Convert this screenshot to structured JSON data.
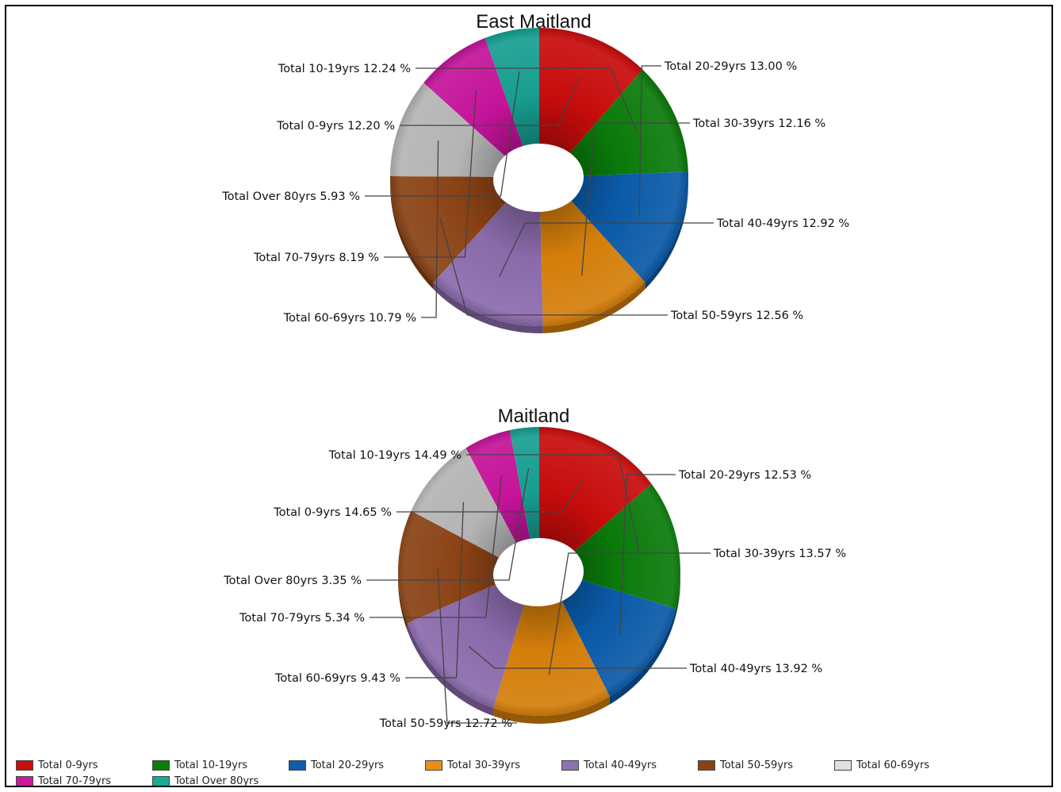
{
  "chart_data": [
    {
      "type": "pie",
      "title": "East Maitland",
      "categories": [
        "Total 0-9yrs",
        "Total 10-19yrs",
        "Total 20-29yrs",
        "Total 30-39yrs",
        "Total 40-49yrs",
        "Total 50-59yrs",
        "Total 60-69yrs",
        "Total 70-79yrs",
        "Total Over 80yrs"
      ],
      "values": [
        12.2,
        12.24,
        13.0,
        12.16,
        12.92,
        12.56,
        10.79,
        8.19,
        5.93
      ],
      "labels": [
        "Total 0-9yrs 12.20 %",
        "Total 10-19yrs 12.24 %",
        "Total 20-29yrs 13.00 %",
        "Total 30-39yrs 12.16 %",
        "Total 40-49yrs 12.92 %",
        "Total 50-59yrs 12.56 %",
        "Total 60-69yrs 10.79 %",
        "Total 70-79yrs 8.19 %",
        "Total Over 80yrs 5.93 %"
      ]
    },
    {
      "type": "pie",
      "title": "Maitland",
      "categories": [
        "Total 0-9yrs",
        "Total 10-19yrs",
        "Total 20-29yrs",
        "Total 30-39yrs",
        "Total 40-49yrs",
        "Total 50-59yrs",
        "Total 60-69yrs",
        "Total 70-79yrs",
        "Total Over 80yrs"
      ],
      "values": [
        14.65,
        14.49,
        12.53,
        13.57,
        13.92,
        12.72,
        9.43,
        5.34,
        3.35
      ],
      "labels": [
        "Total 0-9yrs 14.65 %",
        "Total 10-19yrs 14.49 %",
        "Total 20-29yrs 12.53 %",
        "Total 30-39yrs 13.57 %",
        "Total 40-49yrs 13.92 %",
        "Total 50-59yrs 12.72 %",
        "Total 60-69yrs 9.43 %",
        "Total 70-79yrs 5.34 %",
        "Total Over 80yrs 3.35 %"
      ]
    }
  ],
  "legend": {
    "position": "bottom",
    "items": [
      {
        "label": "Total 0-9yrs",
        "color": "#cc0c0c"
      },
      {
        "label": "Total 10-19yrs",
        "color": "#0a7d0a"
      },
      {
        "label": "Total 20-29yrs",
        "color": "#0a5ead"
      },
      {
        "label": "Total 30-39yrs",
        "color": "#f08c14"
      },
      {
        "label": "Total 40-49yrs",
        "color": "#8e71b3"
      },
      {
        "label": "Total 50-59yrs",
        "color": "#8a4214"
      },
      {
        "label": "Total 60-69yrs",
        "color": "#e0e0e0"
      },
      {
        "label": "Total 70-79yrs",
        "color": "#cc1a9c"
      },
      {
        "label": "Total Over 80yrs",
        "color": "#1aa898"
      }
    ]
  },
  "slice_colors": [
    "#c80c0c",
    "#0a7a0a",
    "#0a5aa8",
    "#d47e0a",
    "#8a6aab",
    "#8a4214",
    "#b4b4b4",
    "#c4139a",
    "#169e90"
  ]
}
